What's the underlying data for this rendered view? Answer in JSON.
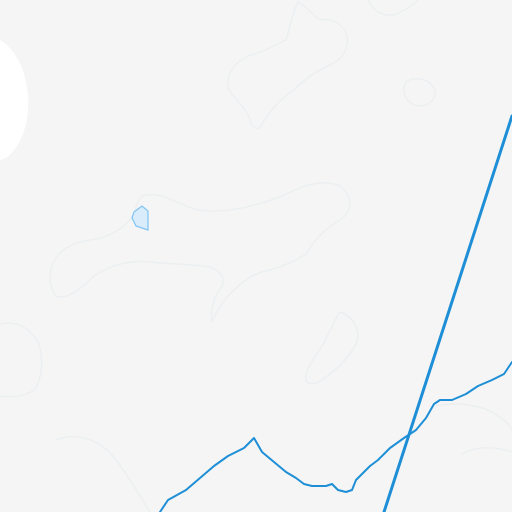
{
  "map": {
    "colors": {
      "land": "#f5f5f5",
      "terrain_contour": "#eceff1",
      "water_outline": "#7fc4f2",
      "water_fill": "#d9ecfb",
      "river": "#1e8fd6",
      "route": "#1e8fd6",
      "glacier_highlight": "#ffffff"
    }
  }
}
